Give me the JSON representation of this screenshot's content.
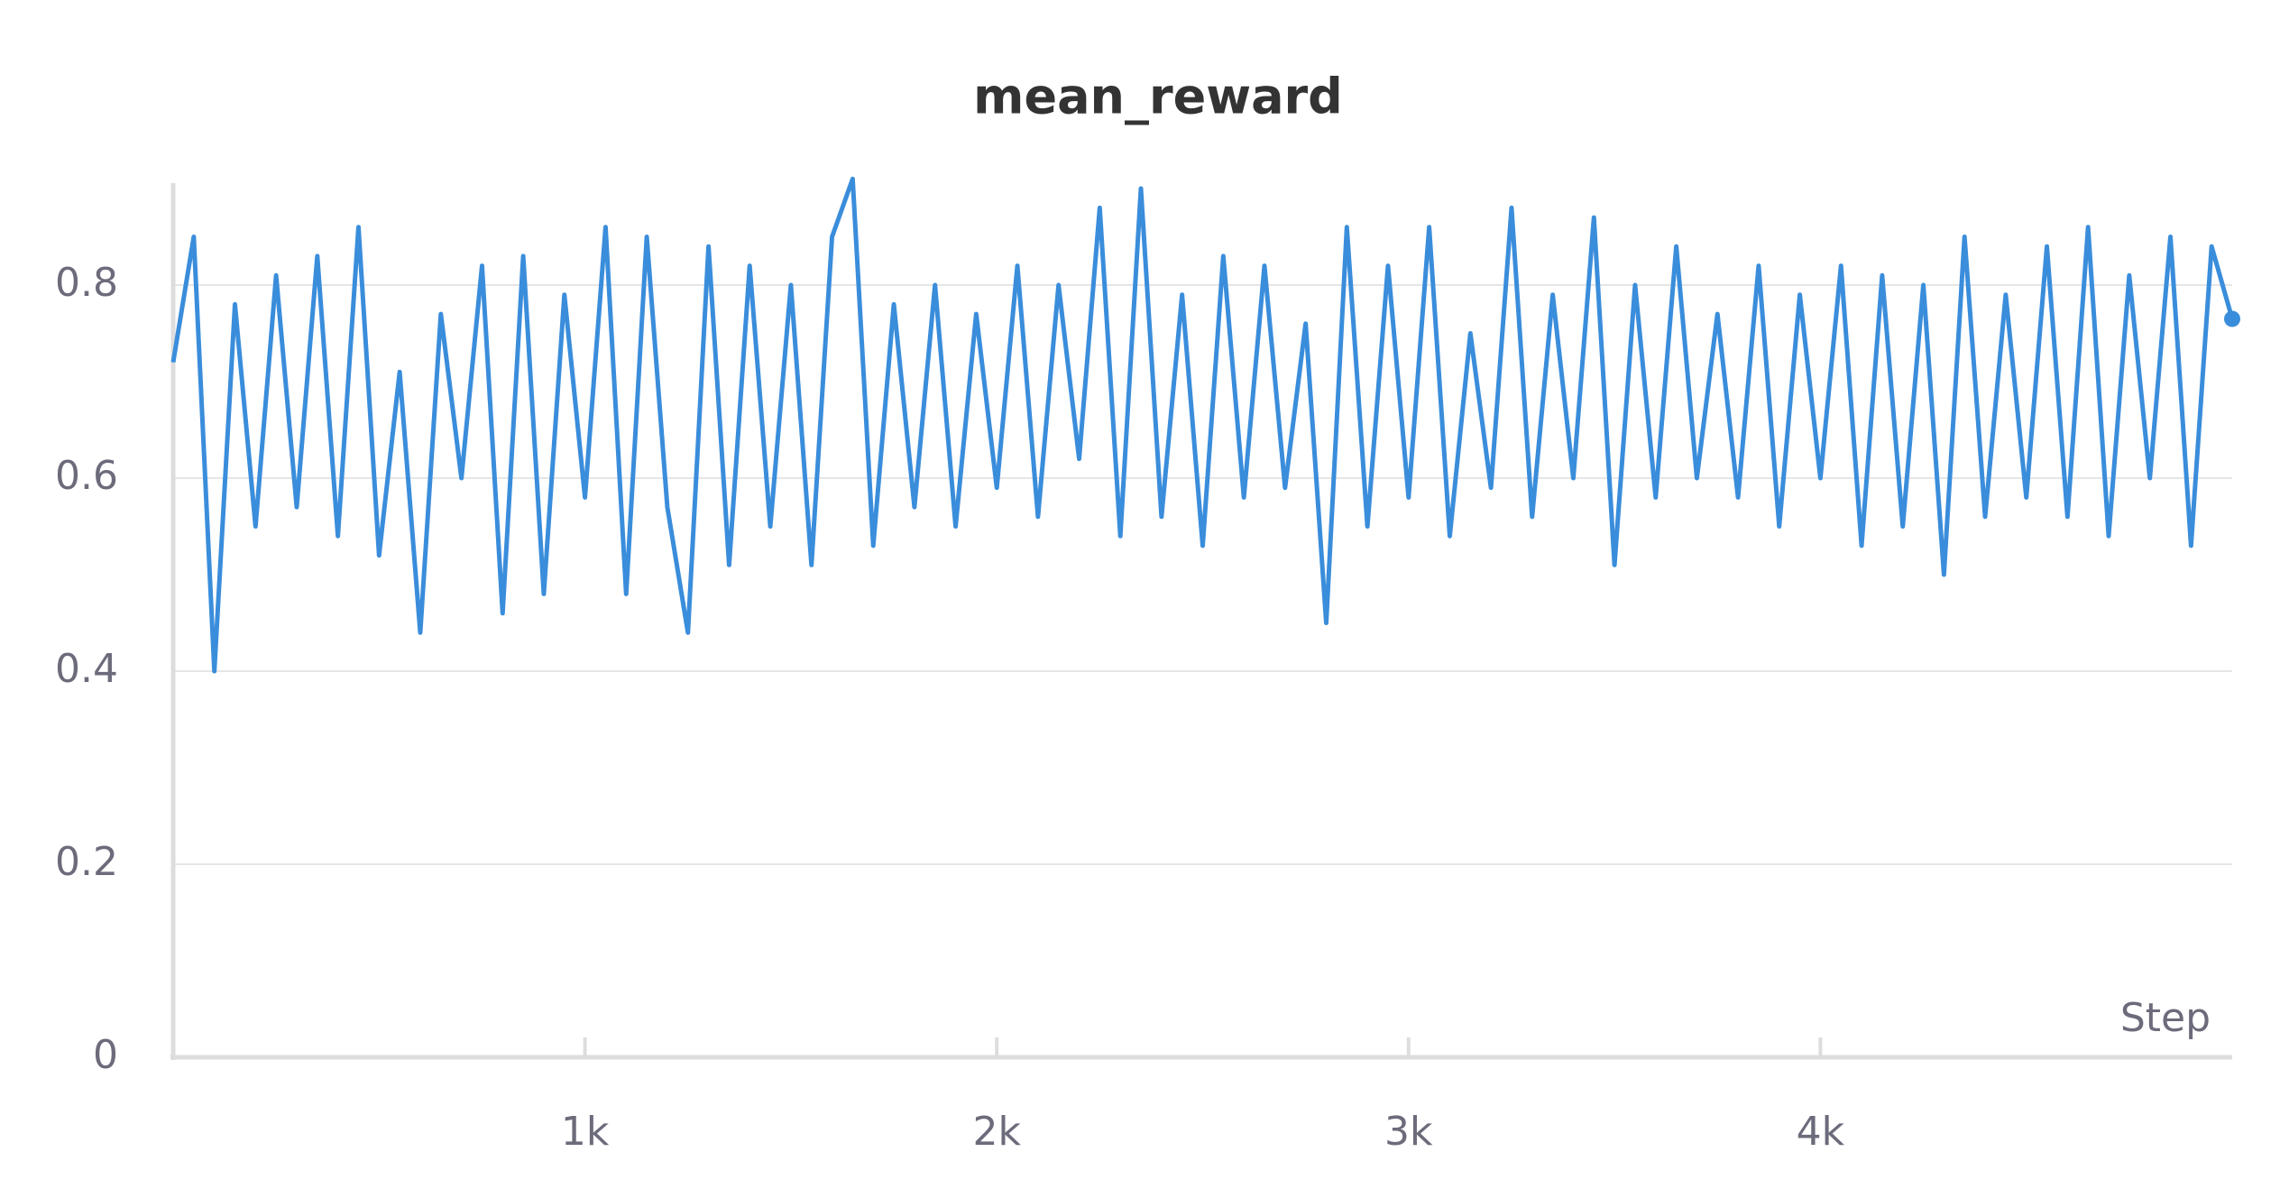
{
  "chart_data": {
    "type": "line",
    "title": "mean_reward",
    "xlabel": "Step",
    "x": [
      0,
      50,
      100,
      150,
      200,
      250,
      300,
      350,
      400,
      450,
      500,
      550,
      600,
      650,
      700,
      750,
      800,
      850,
      900,
      950,
      1000,
      1050,
      1100,
      1150,
      1200,
      1250,
      1300,
      1350,
      1400,
      1450,
      1500,
      1550,
      1600,
      1650,
      1700,
      1750,
      1800,
      1850,
      1900,
      1950,
      2000,
      2050,
      2100,
      2150,
      2200,
      2250,
      2300,
      2350,
      2400,
      2450,
      2500,
      2550,
      2600,
      2650,
      2700,
      2750,
      2800,
      2850,
      2900,
      2950,
      3000,
      3050,
      3100,
      3150,
      3200,
      3250,
      3300,
      3350,
      3400,
      3450,
      3500,
      3550,
      3600,
      3650,
      3700,
      3750,
      3800,
      3850,
      3900,
      3950,
      4000,
      4050,
      4100,
      4150,
      4200,
      4250,
      4300,
      4350,
      4400,
      4450,
      4500,
      4550,
      4600,
      4650,
      4700,
      4750,
      4800,
      4850,
      4900,
      4950,
      5000
    ],
    "series": [
      {
        "name": "mean_reward",
        "color": "#3a8ddb",
        "values": [
          0.72,
          0.85,
          0.4,
          0.78,
          0.55,
          0.81,
          0.57,
          0.83,
          0.54,
          0.86,
          0.52,
          0.71,
          0.44,
          0.77,
          0.6,
          0.82,
          0.46,
          0.83,
          0.48,
          0.79,
          0.58,
          0.86,
          0.48,
          0.85,
          0.57,
          0.44,
          0.84,
          0.51,
          0.82,
          0.55,
          0.8,
          0.51,
          0.85,
          0.91,
          0.53,
          0.78,
          0.57,
          0.8,
          0.55,
          0.77,
          0.59,
          0.82,
          0.56,
          0.8,
          0.62,
          0.88,
          0.54,
          0.9,
          0.56,
          0.79,
          0.53,
          0.83,
          0.58,
          0.82,
          0.59,
          0.76,
          0.45,
          0.86,
          0.55,
          0.82,
          0.58,
          0.86,
          0.54,
          0.75,
          0.59,
          0.88,
          0.56,
          0.79,
          0.6,
          0.87,
          0.51,
          0.8,
          0.58,
          0.84,
          0.6,
          0.77,
          0.58,
          0.82,
          0.55,
          0.79,
          0.6,
          0.82,
          0.53,
          0.81,
          0.55,
          0.8,
          0.5,
          0.85,
          0.56,
          0.79,
          0.58,
          0.84,
          0.56,
          0.86,
          0.54,
          0.81,
          0.6,
          0.85,
          0.53,
          0.84,
          0.765
        ]
      }
    ],
    "xlim": [
      0,
      5000
    ],
    "xticks": [
      {
        "value": 1000,
        "label": "1k"
      },
      {
        "value": 2000,
        "label": "2k"
      },
      {
        "value": 3000,
        "label": "3k"
      },
      {
        "value": 4000,
        "label": "4k"
      }
    ],
    "ylim": [
      0,
      0.9
    ],
    "yticks": [
      0,
      0.2,
      0.4,
      0.6,
      0.8
    ],
    "grid": true
  }
}
